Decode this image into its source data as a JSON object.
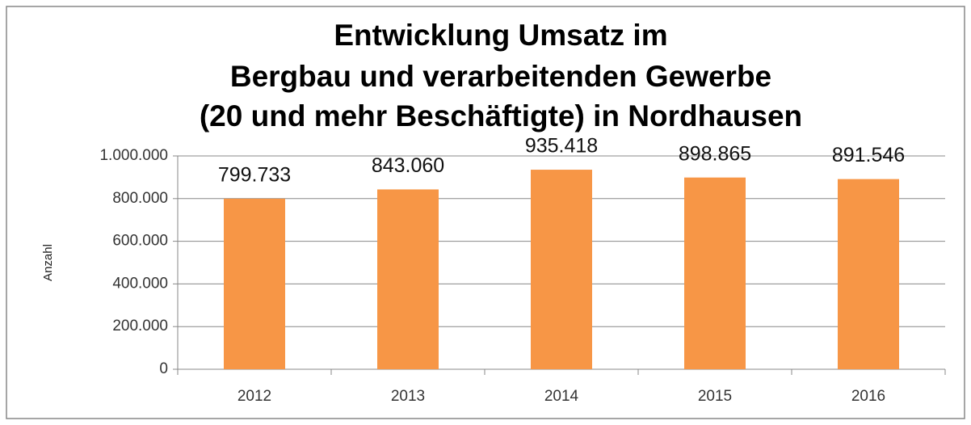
{
  "chart_data": {
    "type": "bar",
    "title": [
      "Entwicklung Umsatz im",
      "Bergbau und verarbeitenden Gewerbe",
      "(20 und mehr Beschäftigte) in Nordhausen"
    ],
    "ylabel": "Anzahl",
    "categories": [
      "2012",
      "2013",
      "2014",
      "2015",
      "2016"
    ],
    "values": [
      799733,
      843060,
      935418,
      898865,
      891546
    ],
    "value_labels": [
      "799.733",
      "843.060",
      "935.418",
      "898.865",
      "891.546"
    ],
    "color": "#f79646",
    "ylim": [
      0,
      1000000
    ],
    "yticks": [
      0,
      {
        "value": 200000,
        "label": "200.000"
      },
      {
        "value": 400000,
        "label": "400.000"
      },
      {
        "value": 600000,
        "label": "600.000"
      },
      {
        "value": 800000,
        "label": "800.000"
      },
      {
        "value": 1000000,
        "label": "1.000.000"
      }
    ],
    "grid": true
  }
}
